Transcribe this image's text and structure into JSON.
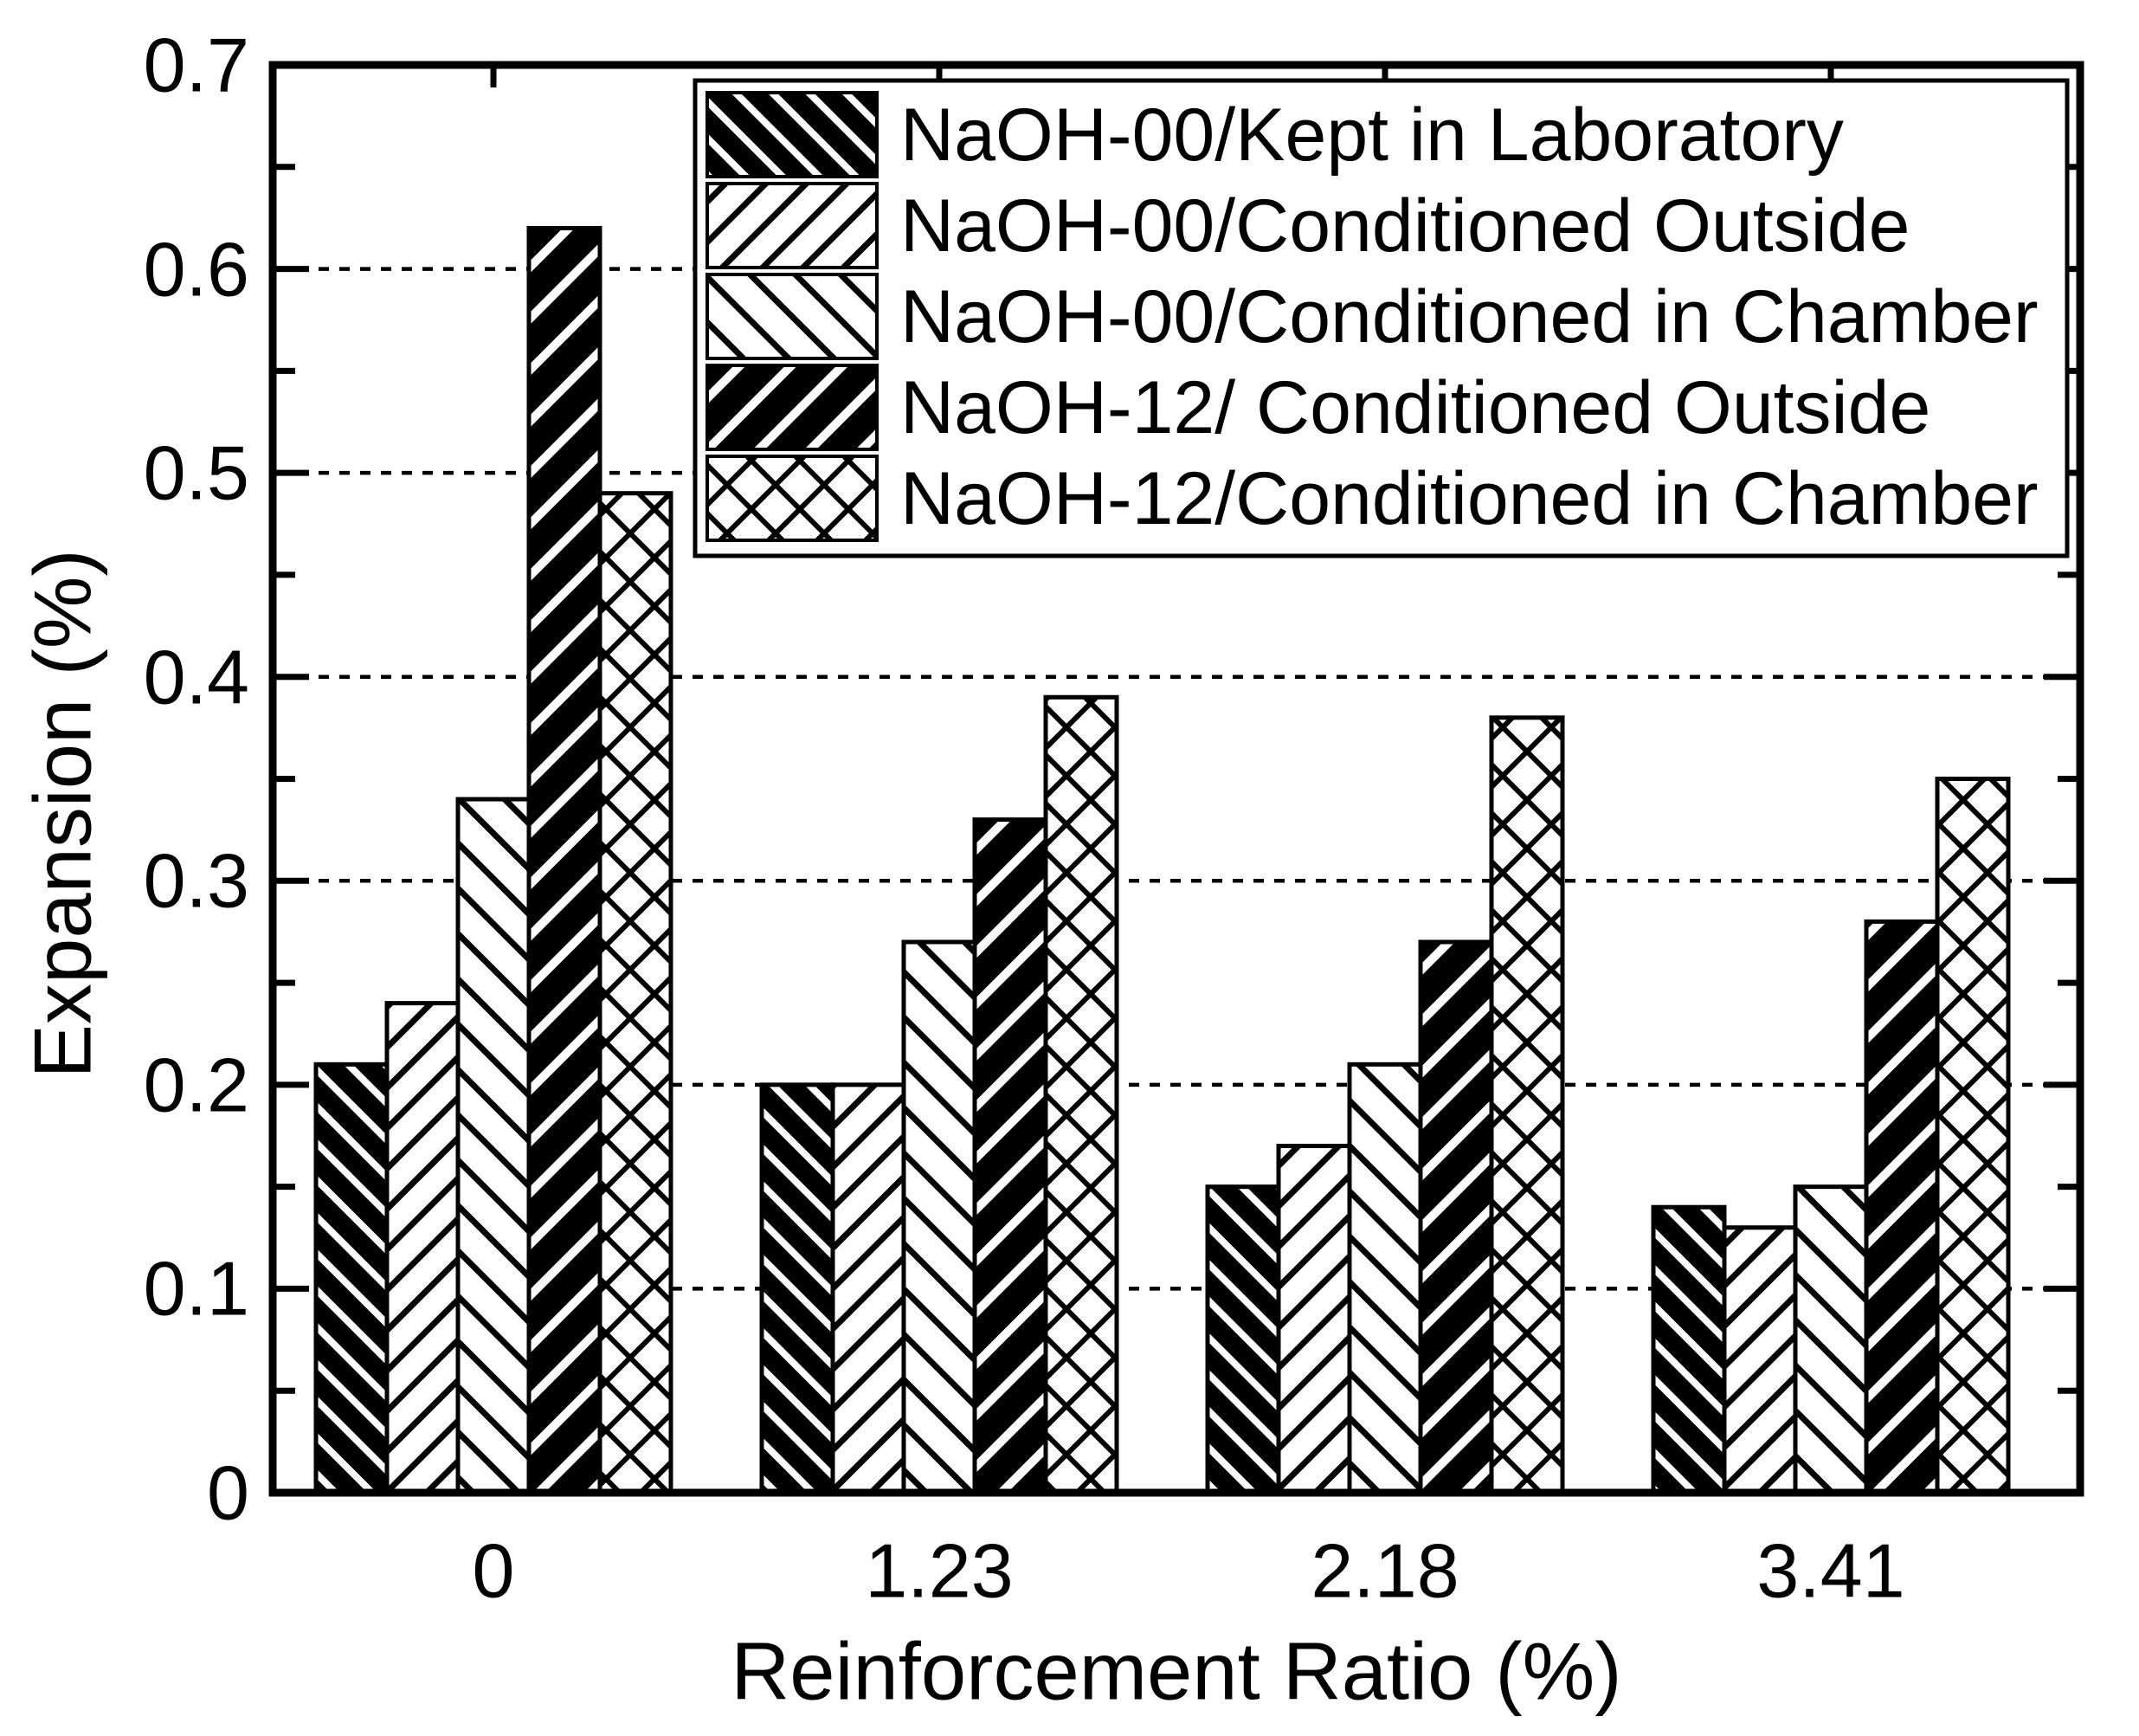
{
  "figure": {
    "background": "#ffffff",
    "foreground": "#000000"
  },
  "chart_data": {
    "type": "bar",
    "title": "",
    "xlabel": "Reinforcement Ratio (%)",
    "ylabel": "Expansion (%)",
    "categories": [
      "0",
      "1.23",
      "2.18",
      "3.41"
    ],
    "series": [
      {
        "name": "NaOH-00/Kept in Laboratory",
        "pattern": "black-backslash-hatch",
        "values": [
          0.21,
          0.2,
          0.15,
          0.14
        ]
      },
      {
        "name": "NaOH-00/Conditioned Outside",
        "pattern": "white-slash-hatch",
        "values": [
          0.24,
          0.2,
          0.17,
          0.13
        ]
      },
      {
        "name": "NaOH-00/Conditioned in Chamber",
        "pattern": "white-backslash-hatch",
        "values": [
          0.34,
          0.27,
          0.21,
          0.15
        ]
      },
      {
        "name": "NaOH-12/ Conditioned Outside",
        "pattern": "black-slash-hatch",
        "values": [
          0.62,
          0.33,
          0.27,
          0.28
        ]
      },
      {
        "name": "NaOH-12/Conditioned in Chamber",
        "pattern": "crosshatch",
        "values": [
          0.49,
          0.39,
          0.38,
          0.35
        ]
      }
    ],
    "ylim": [
      0,
      0.7
    ],
    "y_major_step": 0.1,
    "y_minor_step": 0.05,
    "y_tick_labels": [
      "0",
      "0.1",
      "0.2",
      "0.3",
      "0.4",
      "0.5",
      "0.6",
      "0.7"
    ],
    "gridlines": {
      "values": [
        0.1,
        0.2,
        0.3,
        0.4,
        0.5,
        0.6
      ],
      "style": "dotted"
    },
    "legend_position": "top-right"
  }
}
